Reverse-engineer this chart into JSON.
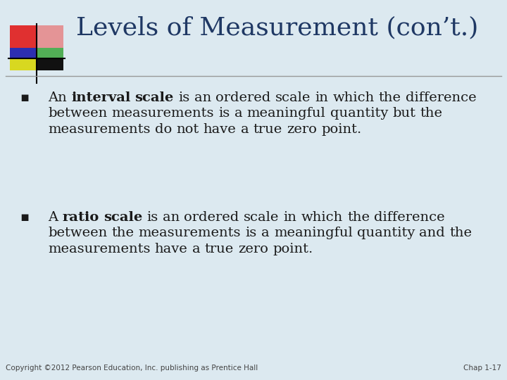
{
  "title": "Levels of Measurement (con’t.)",
  "title_color": "#1F3864",
  "background_color": "#dce9f0",
  "bullet1_text_parts": [
    [
      "An ",
      false
    ],
    [
      "interval scale",
      true
    ],
    [
      " is an ordered scale in which the difference between measurements is a meaningful quantity but the measurements do not have a true zero point.",
      false
    ]
  ],
  "bullet2_text_parts": [
    [
      "A ",
      false
    ],
    [
      "ratio scale",
      true
    ],
    [
      " is an ordered scale in which the difference between the measurements is a meaningful quantity and the measurements have a true zero point.",
      false
    ]
  ],
  "footer_left": "Copyright ©2012 Pearson Education, Inc. publishing as Prentice Hall",
  "footer_right": "Chap 1-17",
  "footer_color": "#444444",
  "text_color": "#1a1a1a",
  "line_color": "#999999",
  "header_logo": {
    "red": "#e03030",
    "pink": "#e87070",
    "blue": "#1a1aaa",
    "green": "#30a030",
    "yellow": "#d8d820",
    "black": "#111111"
  },
  "title_font_size": 26,
  "body_font_size": 14,
  "footer_font_size": 7.5
}
